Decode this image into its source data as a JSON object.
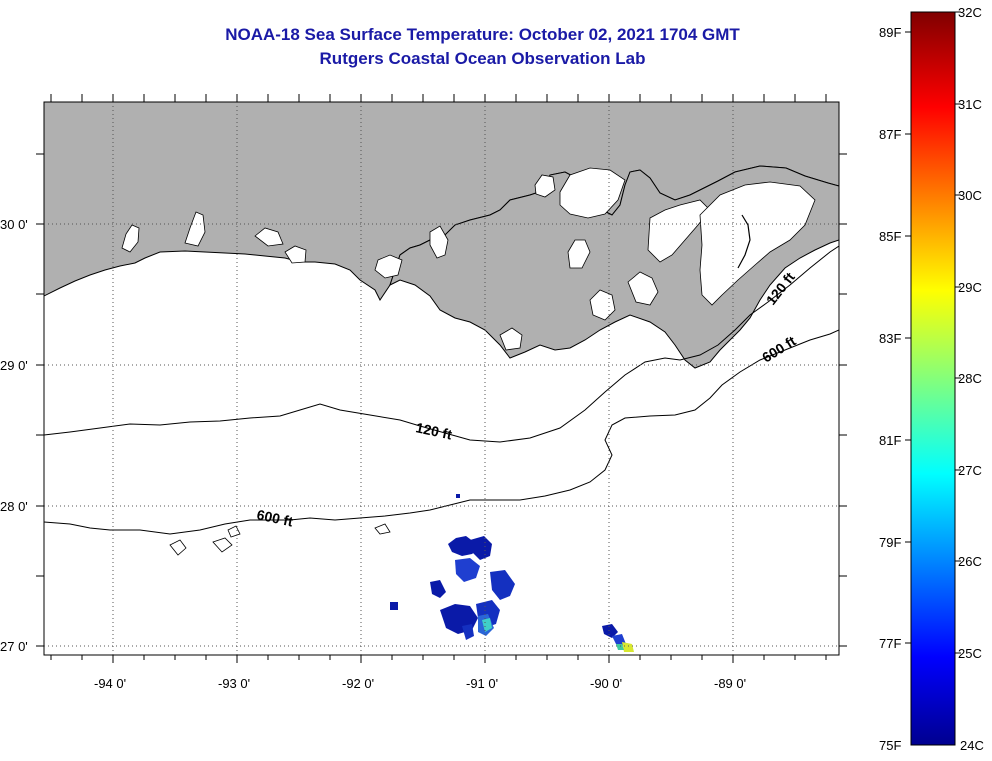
{
  "header": {
    "title": "NOAA-18 Sea Surface Temperature:  October 02, 2021 1704 GMT",
    "subtitle": "Rutgers Coastal Ocean Observation Lab"
  },
  "map": {
    "region": "Northern Gulf of Mexico (Louisiana coast)",
    "lon_range": [
      -94.5,
      -88.2
    ],
    "lat_range": [
      26.97,
      30.85
    ],
    "lon_labels": [
      "-94 0'",
      "-93 0'",
      "-92 0'",
      "-91 0'",
      "-90 0'",
      "-89 0'"
    ],
    "lat_labels": [
      "30 0'",
      "29 0'",
      "28 0'",
      "27 0'"
    ],
    "contours": [
      {
        "label": "120 ft"
      },
      {
        "label": "600 ft"
      }
    ],
    "contour_labels": [
      "120 ft",
      "120 ft",
      "600 ft",
      "600 ft"
    ],
    "land_color": "#b0b0b0",
    "grid": "dotted"
  },
  "colorbar": {
    "fahrenheit_labels": [
      "89F",
      "87F",
      "85F",
      "83F",
      "81F",
      "79F",
      "77F",
      "75F"
    ],
    "celsius_labels": [
      "32C",
      "31C",
      "30C",
      "29C",
      "28C",
      "27C",
      "26C",
      "25C",
      "24C"
    ],
    "colors": [
      "#00008f",
      "#0000ff",
      "#00ffff",
      "#ffff00",
      "#ff0000",
      "#800000"
    ]
  }
}
